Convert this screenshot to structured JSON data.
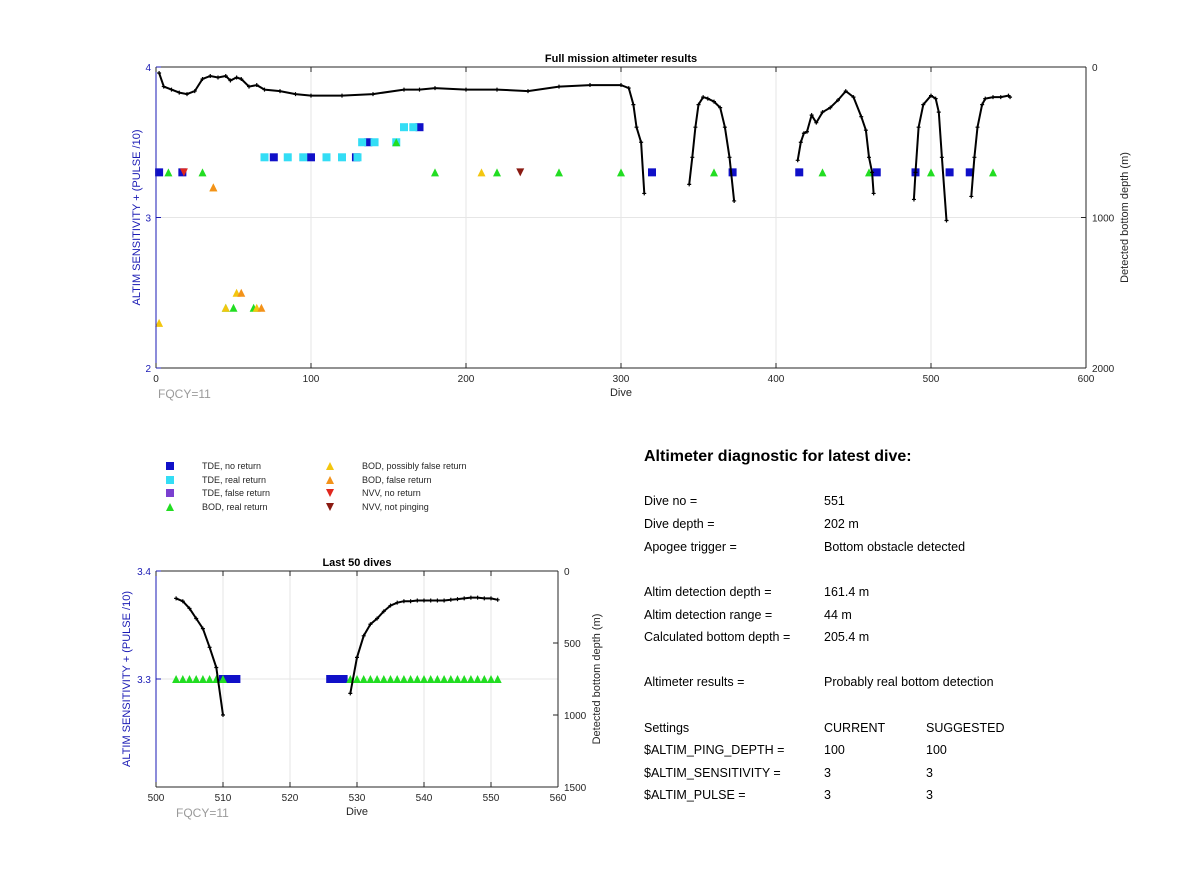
{
  "chart_data": [
    {
      "type": "scatter",
      "title": "Full mission altimeter results",
      "xlabel": "Dive",
      "ylabel": "ALTIM SENSITIVITY + (PULSE /10)",
      "ylabel_right": "Detected bottom depth (m)",
      "xlim": [
        0,
        600
      ],
      "ylim": [
        2,
        4
      ],
      "ylim_right": [
        2000,
        0
      ],
      "xticks": [
        "0",
        "100",
        "200",
        "300",
        "400",
        "500",
        "600"
      ],
      "yticks": [
        "2",
        "3",
        "4"
      ],
      "yticks_right": [
        "2000",
        "1000",
        "0"
      ],
      "grid": true,
      "annotation": "FQCY=11",
      "depth_series": {
        "name": "Detected bottom depth",
        "segments": [
          {
            "x": [
              2,
              5,
              10,
              15,
              20,
              25,
              30,
              35,
              40,
              45,
              48,
              52,
              55,
              60,
              65,
              70,
              80,
              90,
              100,
              120,
              140,
              160,
              170,
              180,
              200,
              220,
              240,
              260,
              280,
              300,
              305,
              308,
              310,
              313,
              315
            ],
            "y": [
              40,
              130,
              150,
              170,
              180,
              160,
              80,
              60,
              70,
              60,
              90,
              70,
              80,
              130,
              120,
              150,
              160,
              180,
              190,
              190,
              180,
              150,
              150,
              140,
              150,
              150,
              160,
              130,
              120,
              120,
              140,
              250,
              400,
              500,
              840
            ]
          },
          {
            "x": [
              344,
              346,
              348,
              350,
              353,
              356,
              360,
              364,
              367,
              370,
              373
            ],
            "y": [
              780,
              600,
              400,
              250,
              200,
              210,
              230,
              270,
              400,
              600,
              890
            ]
          },
          {
            "x": [
              414,
              416,
              418,
              420,
              423,
              426,
              430,
              435,
              440,
              445,
              450,
              455,
              458,
              460,
              462,
              463
            ],
            "y": [
              620,
              500,
              440,
              430,
              320,
              370,
              300,
              270,
              220,
              160,
              200,
              330,
              420,
              600,
              700,
              840
            ]
          },
          {
            "x": [
              489,
              490,
              492,
              495,
              500,
              503,
              505,
              507,
              510
            ],
            "y": [
              880,
              700,
              400,
              250,
              190,
              210,
              300,
              600,
              1020
            ]
          },
          {
            "x": [
              526,
              528,
              530,
              533,
              535,
              540,
              545,
              550,
              551
            ],
            "y": [
              860,
              600,
              400,
              250,
              210,
              200,
              200,
              190,
              200
            ]
          }
        ]
      },
      "series": [
        {
          "name": "TDE, no return",
          "points": [
            [
              2,
              3.3
            ],
            [
              17,
              3.3
            ],
            [
              76,
              3.4
            ],
            [
              100,
              3.4
            ],
            [
              129,
              3.4
            ],
            [
              137,
              3.5
            ],
            [
              170,
              3.6
            ],
            [
              320,
              3.3
            ],
            [
              372,
              3.3
            ],
            [
              415,
              3.3
            ],
            [
              465,
              3.3
            ],
            [
              490,
              3.3
            ],
            [
              512,
              3.3
            ],
            [
              525,
              3.3
            ]
          ]
        },
        {
          "name": "TDE, real return",
          "points": [
            [
              70,
              3.4
            ],
            [
              85,
              3.4
            ],
            [
              95,
              3.4
            ],
            [
              110,
              3.4
            ],
            [
              120,
              3.4
            ],
            [
              130,
              3.4
            ],
            [
              133,
              3.5
            ],
            [
              141,
              3.5
            ],
            [
              155,
              3.5
            ],
            [
              160,
              3.6
            ],
            [
              166,
              3.6
            ]
          ]
        },
        {
          "name": "BOD, real return",
          "points": [
            [
              8,
              3.3
            ],
            [
              30,
              3.3
            ],
            [
              45,
              2.4
            ],
            [
              50,
              2.4
            ],
            [
              63,
              2.4
            ],
            [
              155,
              3.5
            ],
            [
              180,
              3.3
            ],
            [
              220,
              3.3
            ],
            [
              260,
              3.3
            ],
            [
              300,
              3.3
            ],
            [
              360,
              3.3
            ],
            [
              430,
              3.3
            ],
            [
              460,
              3.3
            ],
            [
              500,
              3.3
            ],
            [
              540,
              3.3
            ]
          ]
        },
        {
          "name": "BOD, possibly false return",
          "points": [
            [
              2,
              2.3
            ],
            [
              37,
              3.2
            ],
            [
              45,
              2.4
            ],
            [
              52,
              2.5
            ],
            [
              65,
              2.4
            ],
            [
              210,
              3.3
            ]
          ]
        },
        {
          "name": "BOD, false return",
          "points": [
            [
              37,
              3.2
            ],
            [
              55,
              2.5
            ],
            [
              68,
              2.4
            ]
          ]
        },
        {
          "name": "NVV, no return",
          "points": [
            [
              18,
              3.3
            ]
          ]
        },
        {
          "name": "NVV, not pinging",
          "points": [
            [
              235,
              3.3
            ]
          ]
        }
      ]
    },
    {
      "type": "scatter",
      "title": "Last 50 dives",
      "xlabel": "Dive",
      "ylabel": "ALTIM SENSITIVITY + (PULSE /10)",
      "ylabel_right": "Detected bottom depth (m)",
      "xlim": [
        500,
        560
      ],
      "ylim": [
        3.2,
        3.4
      ],
      "ylim_right": [
        1500,
        0
      ],
      "xticks": [
        "500",
        "510",
        "520",
        "530",
        "540",
        "550",
        "560"
      ],
      "yticks": [
        "3.3",
        "3.4"
      ],
      "yticks_right": [
        "1500",
        "1000",
        "500",
        "0"
      ],
      "grid": true,
      "annotation": "FQCY=11",
      "depth_series": {
        "name": "Detected bottom depth",
        "segments": [
          {
            "x": [
              503,
              504,
              505,
              506,
              507,
              508,
              509,
              510
            ],
            "y": [
              190,
              210,
              260,
              330,
              400,
              530,
              670,
              1000
            ]
          },
          {
            "x": [
              529,
              530,
              531,
              532,
              533,
              534,
              535,
              536,
              537,
              538,
              539,
              540,
              541,
              542,
              543,
              544,
              545,
              546,
              547,
              548,
              549,
              550,
              551
            ],
            "y": [
              850,
              600,
              450,
              370,
              330,
              280,
              240,
              220,
              210,
              210,
              205,
              205,
              205,
              205,
              205,
              200,
              195,
              190,
              185,
              185,
              190,
              190,
              200
            ]
          }
        ]
      },
      "series": [
        {
          "name": "TDE, no return",
          "points": [
            [
              510,
              3.3
            ],
            [
              511,
              3.3
            ],
            [
              512,
              3.3
            ],
            [
              526,
              3.3
            ],
            [
              527,
              3.3
            ],
            [
              528,
              3.3
            ]
          ]
        },
        {
          "name": "BOD, real return",
          "points": [
            [
              503,
              3.3
            ],
            [
              504,
              3.3
            ],
            [
              505,
              3.3
            ],
            [
              506,
              3.3
            ],
            [
              507,
              3.3
            ],
            [
              508,
              3.3
            ],
            [
              509,
              3.3
            ],
            [
              510,
              3.3
            ],
            [
              529,
              3.3
            ],
            [
              530,
              3.3
            ],
            [
              531,
              3.3
            ],
            [
              532,
              3.3
            ],
            [
              533,
              3.3
            ],
            [
              534,
              3.3
            ],
            [
              535,
              3.3
            ],
            [
              536,
              3.3
            ],
            [
              537,
              3.3
            ],
            [
              538,
              3.3
            ],
            [
              539,
              3.3
            ],
            [
              540,
              3.3
            ],
            [
              541,
              3.3
            ],
            [
              542,
              3.3
            ],
            [
              543,
              3.3
            ],
            [
              544,
              3.3
            ],
            [
              545,
              3.3
            ],
            [
              546,
              3.3
            ],
            [
              547,
              3.3
            ],
            [
              548,
              3.3
            ],
            [
              549,
              3.3
            ],
            [
              550,
              3.3
            ],
            [
              551,
              3.3
            ]
          ]
        }
      ]
    }
  ],
  "legend": {
    "items": [
      {
        "label": "TDE, no return",
        "marker": "square",
        "color": "#1010c8"
      },
      {
        "label": "TDE, real return",
        "marker": "square",
        "color": "#33ddf5"
      },
      {
        "label": "TDE, false return",
        "marker": "square",
        "color": "#7a3fd0"
      },
      {
        "label": "BOD, real return",
        "marker": "triangle-up",
        "color": "#22dd22"
      },
      {
        "label": "BOD, possibly false return",
        "marker": "triangle-up",
        "color": "#f3c60f"
      },
      {
        "label": "BOD, false return",
        "marker": "triangle-up",
        "color": "#f39219"
      },
      {
        "label": "NVV, no return",
        "marker": "triangle-down",
        "color": "#e0271e"
      },
      {
        "label": "NVV, not pinging",
        "marker": "triangle-down",
        "color": "#8a1a12"
      }
    ]
  },
  "diagnostic": {
    "title": "Altimeter diagnostic for latest dive:",
    "rows": [
      {
        "label": "Dive no =",
        "value": "551"
      },
      {
        "label": "Dive depth =",
        "value": "202 m"
      },
      {
        "label": "Apogee trigger =",
        "value": "Bottom obstacle detected"
      },
      {
        "label": "Altim detection depth =",
        "value": "161.4 m"
      },
      {
        "label": "Altim detection range =",
        "value": "44 m"
      },
      {
        "label": "Calculated bottom depth =",
        "value": "205.4 m"
      },
      {
        "label": "Altimeter results =",
        "value": "Probably real bottom detection"
      }
    ],
    "settings": {
      "header": [
        "Settings",
        "CURRENT",
        "SUGGESTED"
      ],
      "rows": [
        {
          "label": "$ALTIM_PING_DEPTH =",
          "current": "100",
          "suggested": "100"
        },
        {
          "label": "$ALTIM_SENSITIVITY =",
          "current": "3",
          "suggested": "3"
        },
        {
          "label": "$ALTIM_PULSE =",
          "current": "3",
          "suggested": "3"
        }
      ]
    }
  },
  "colors": {
    "axis": "#262626",
    "left_axis": "#1a1ab4",
    "grid": "#e6e6e6",
    "annotation": "#9a9a9a",
    "line": "#000000"
  }
}
